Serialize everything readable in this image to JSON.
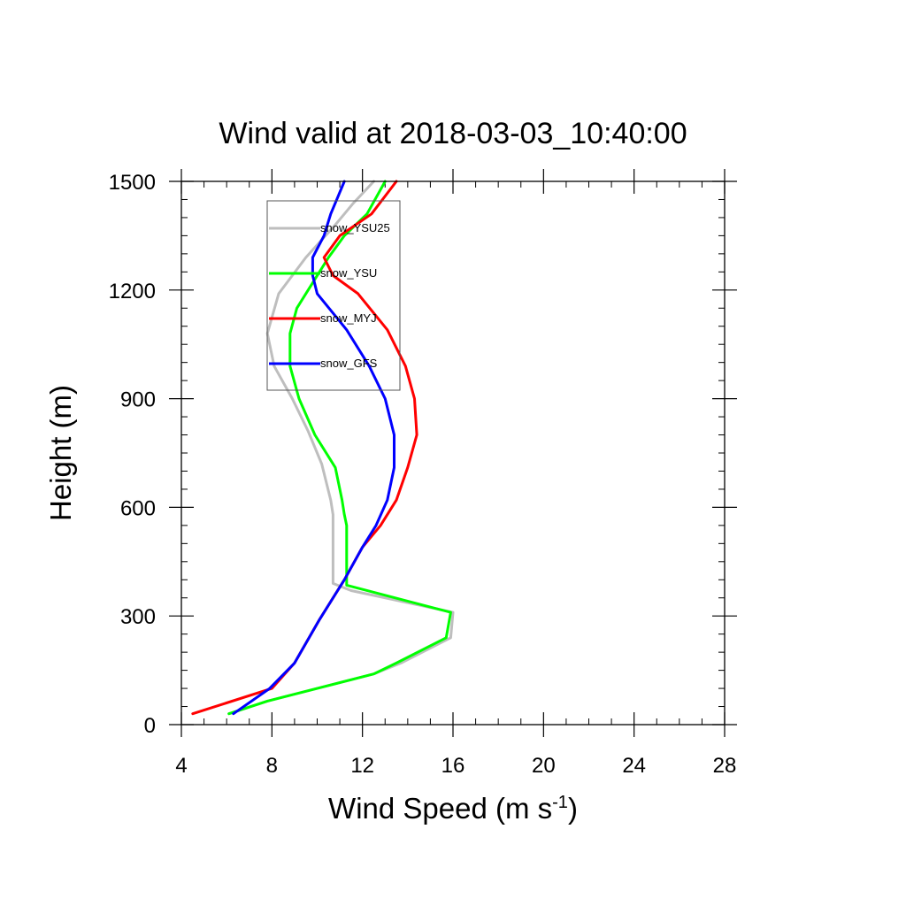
{
  "chart_data": {
    "type": "line",
    "title": "Wind valid at 2018-03-03_10:40:00",
    "xlabel": "Wind Speed (m s",
    "xlabel_sup": "-1",
    "xlabel_suffix": ")",
    "ylabel": "Height (m)",
    "xlim": [
      4,
      28
    ],
    "ylim": [
      0,
      1500
    ],
    "x_ticks": [
      4,
      8,
      12,
      16,
      20,
      24,
      28
    ],
    "x_tick_labels": [
      "4",
      "8",
      "12",
      "16",
      "20",
      "24",
      "28"
    ],
    "y_ticks": [
      0,
      300,
      600,
      900,
      1200,
      1500
    ],
    "y_tick_labels": [
      "0",
      "300",
      "600",
      "900",
      "1200",
      "1500"
    ],
    "x_minor_step": 1,
    "y_minor_step": 50,
    "grid": false,
    "legend_position": "upper-left",
    "series": [
      {
        "name": "snow_YSU25",
        "color": "#bebebe",
        "points": [
          [
            6.1,
            30
          ],
          [
            7.8,
            65
          ],
          [
            10.0,
            100
          ],
          [
            12.5,
            140
          ],
          [
            13.7,
            170
          ],
          [
            15.9,
            240
          ],
          [
            16.0,
            310
          ],
          [
            11.5,
            370
          ],
          [
            10.7,
            390
          ],
          [
            10.7,
            550
          ],
          [
            10.7,
            580
          ],
          [
            10.6,
            620
          ],
          [
            10.2,
            720
          ],
          [
            9.6,
            810
          ],
          [
            8.9,
            900
          ],
          [
            8.1,
            990
          ],
          [
            7.8,
            1080
          ],
          [
            8.3,
            1190
          ],
          [
            9.5,
            1290
          ],
          [
            10.8,
            1380
          ],
          [
            11.6,
            1440
          ],
          [
            12.5,
            1500
          ]
        ]
      },
      {
        "name": "snow_YSU",
        "color": "#00ff00",
        "points": [
          [
            6.1,
            30
          ],
          [
            7.8,
            65
          ],
          [
            10.0,
            100
          ],
          [
            12.5,
            140
          ],
          [
            13.5,
            170
          ],
          [
            15.7,
            240
          ],
          [
            15.9,
            310
          ],
          [
            11.3,
            385
          ],
          [
            11.3,
            550
          ],
          [
            11.2,
            580
          ],
          [
            11.1,
            620
          ],
          [
            10.8,
            710
          ],
          [
            9.9,
            800
          ],
          [
            9.2,
            900
          ],
          [
            8.8,
            990
          ],
          [
            8.8,
            1080
          ],
          [
            9.1,
            1150
          ],
          [
            9.6,
            1200
          ],
          [
            10.5,
            1290
          ],
          [
            11.2,
            1350
          ],
          [
            12.2,
            1410
          ],
          [
            13.0,
            1500
          ]
        ]
      },
      {
        "name": "snow_MYJ",
        "color": "#ff0000",
        "points": [
          [
            4.5,
            30
          ],
          [
            8.0,
            100
          ],
          [
            9.0,
            170
          ],
          [
            10.1,
            290
          ],
          [
            11.2,
            400
          ],
          [
            12.0,
            490
          ],
          [
            12.8,
            550
          ],
          [
            13.5,
            620
          ],
          [
            14.0,
            710
          ],
          [
            14.4,
            800
          ],
          [
            14.3,
            900
          ],
          [
            13.9,
            990
          ],
          [
            13.1,
            1090
          ],
          [
            11.8,
            1190
          ],
          [
            10.7,
            1240
          ],
          [
            10.3,
            1290
          ],
          [
            11.0,
            1350
          ],
          [
            12.4,
            1410
          ],
          [
            13.5,
            1500
          ]
        ]
      },
      {
        "name": "snow_GFS",
        "color": "#0000ff",
        "points": [
          [
            6.3,
            30
          ],
          [
            7.9,
            100
          ],
          [
            9.0,
            170
          ],
          [
            10.1,
            290
          ],
          [
            11.2,
            400
          ],
          [
            12.0,
            490
          ],
          [
            12.6,
            550
          ],
          [
            13.1,
            620
          ],
          [
            13.4,
            710
          ],
          [
            13.4,
            800
          ],
          [
            13.0,
            900
          ],
          [
            12.3,
            990
          ],
          [
            11.3,
            1090
          ],
          [
            10.0,
            1190
          ],
          [
            9.8,
            1240
          ],
          [
            9.8,
            1290
          ],
          [
            10.3,
            1350
          ],
          [
            10.6,
            1410
          ],
          [
            11.2,
            1500
          ]
        ]
      }
    ]
  }
}
